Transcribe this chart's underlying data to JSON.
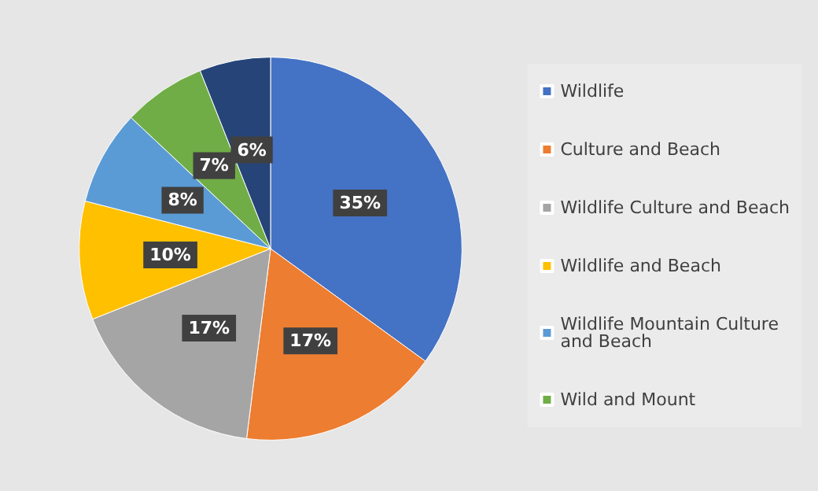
{
  "chart_data": {
    "type": "pie",
    "categories": [
      "Wildlife",
      "Culture and Beach",
      "Wildlife Culture and Beach",
      "Wildlife and Beach",
      "Wildlife Mountain Culture and Beach",
      "Wild and Mount",
      null
    ],
    "values": [
      35,
      17,
      17,
      10,
      8,
      7,
      6
    ],
    "colors": [
      "#4472c4",
      "#ed7d31",
      "#a5a5a5",
      "#ffc000",
      "#5b9bd5",
      "#70ad47",
      "#264478"
    ],
    "value_labels": [
      "35%",
      "17%",
      "17%",
      "10%",
      "8%",
      "7%",
      "6%"
    ],
    "legend": "right"
  }
}
